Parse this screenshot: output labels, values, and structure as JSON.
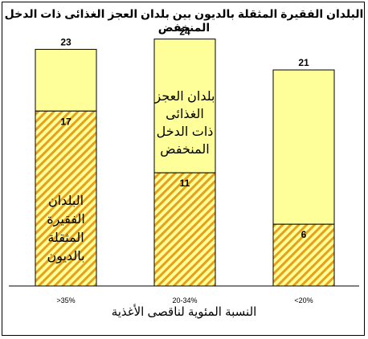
{
  "chart_data": {
    "type": "bar",
    "title": "البلدان الفقيرة المثقلة بالديون بين بلدان العجز الغذائى ذات الدخل المنخفض",
    "xlabel": "النسبة المئوية لناقصى الأغذية",
    "ylabel": "",
    "categories": [
      ">35%",
      "20-34%",
      "<20%"
    ],
    "totals": [
      23,
      24,
      21
    ],
    "series": [
      {
        "values": [
          17,
          11,
          6
        ],
        "pattern": "diagonal-hatch"
      },
      {
        "values": [
          6,
          13,
          15
        ]
      }
    ],
    "ylim": [
      0,
      26
    ],
    "grid": false,
    "annotations": [
      {
        "text_lines": [
          "البلدان",
          "الفقيرة",
          "المثقلة",
          "بالديون"
        ],
        "category": ">35%"
      },
      {
        "text_lines": [
          "بلدان العجز",
          "الغذائى",
          "ذات الدخل",
          "المنخفض"
        ],
        "category": "20-34%"
      }
    ],
    "colors": {
      "fill": "#ffff99",
      "hatch": "#e8a01c",
      "outline": "#000000",
      "frame": "#000000"
    }
  }
}
